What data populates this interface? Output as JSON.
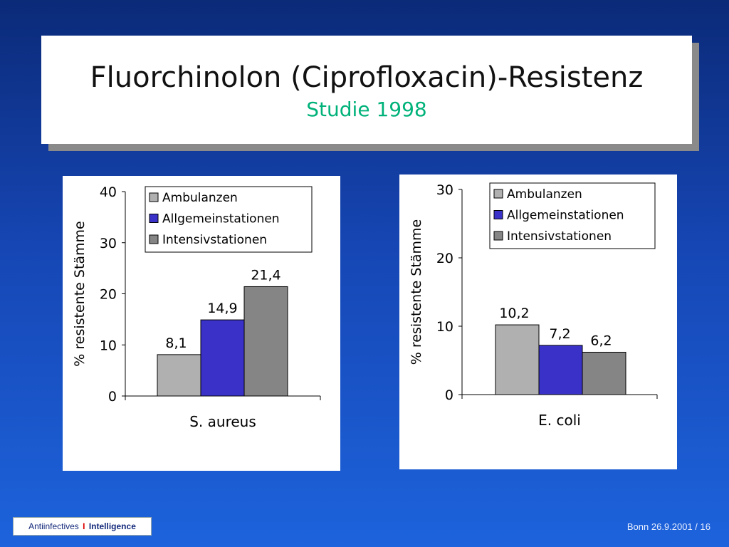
{
  "title": {
    "main": "Fluorchinolon (Ciprofloxacin)-Resistenz",
    "subtitle": "Studie 1998"
  },
  "colors": {
    "Ambulanzen": "#b0b0b0",
    "Allgemeinstationen": "#3a32c8",
    "Intensivstationen": "#858585"
  },
  "chart_data": [
    {
      "type": "bar",
      "categories": [
        "S. aureus"
      ],
      "series": [
        {
          "name": "Ambulanzen",
          "values": [
            8.1
          ],
          "label": "8,1"
        },
        {
          "name": "Allgemeinstationen",
          "values": [
            14.9
          ],
          "label": "14,9"
        },
        {
          "name": "Intensivstationen",
          "values": [
            21.4
          ],
          "label": "21,4"
        }
      ],
      "xlabel": "S. aureus",
      "ylabel": "% resistente Stämme",
      "ylim": [
        0,
        40
      ],
      "yticks": [
        0,
        10,
        20,
        30,
        40
      ],
      "legend": "top-right",
      "grid": false
    },
    {
      "type": "bar",
      "categories": [
        "E. coli"
      ],
      "series": [
        {
          "name": "Ambulanzen",
          "values": [
            10.2
          ],
          "label": "10,2"
        },
        {
          "name": "Allgemeinstationen",
          "values": [
            7.2
          ],
          "label": "7,2"
        },
        {
          "name": "Intensivstationen",
          "values": [
            6.2
          ],
          "label": "6,2"
        }
      ],
      "xlabel": "E. coli",
      "ylabel": "% resistente Stämme",
      "ylim": [
        0,
        30
      ],
      "yticks": [
        0,
        10,
        20,
        30
      ],
      "legend": "top-right",
      "grid": false
    }
  ],
  "footer": {
    "brand_left": "Antiinfectives",
    "brand_sep": "I",
    "brand_right": "Intelligence",
    "page_info": "Bonn 26.9.2001 / 16"
  }
}
